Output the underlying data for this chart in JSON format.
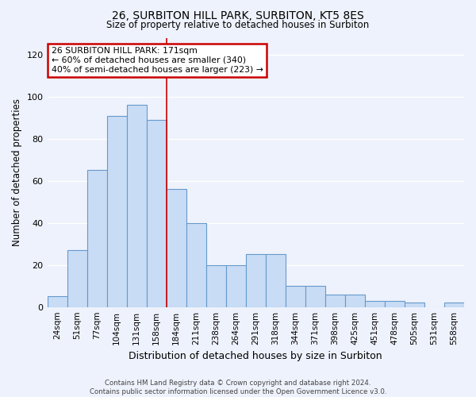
{
  "title1": "26, SURBITON HILL PARK, SURBITON, KT5 8ES",
  "title2": "Size of property relative to detached houses in Surbiton",
  "xlabel": "Distribution of detached houses by size in Surbiton",
  "ylabel": "Number of detached properties",
  "bar_values": [
    5,
    27,
    65,
    91,
    96,
    89,
    56,
    40,
    20,
    20,
    25,
    25,
    10,
    10,
    6,
    6,
    3,
    3,
    2,
    0,
    2
  ],
  "bin_labels": [
    "24sqm",
    "51sqm",
    "77sqm",
    "104sqm",
    "131sqm",
    "158sqm",
    "184sqm",
    "211sqm",
    "238sqm",
    "264sqm",
    "291sqm",
    "318sqm",
    "344sqm",
    "371sqm",
    "398sqm",
    "425sqm",
    "451sqm",
    "478sqm",
    "505sqm",
    "531sqm",
    "558sqm"
  ],
  "bar_color": "#c9dcf5",
  "bar_edge_color": "#6699cc",
  "property_line_x": 5.5,
  "annotation_title": "26 SURBITON HILL PARK: 171sqm",
  "annotation_line1": "← 60% of detached houses are smaller (340)",
  "annotation_line2": "40% of semi-detached houses are larger (223) →",
  "annotation_box_color": "#ffffff",
  "annotation_box_edge": "#cc0000",
  "vline_color": "#cc0000",
  "ylim": [
    0,
    128
  ],
  "yticks": [
    0,
    20,
    40,
    60,
    80,
    100,
    120
  ],
  "footer1": "Contains HM Land Registry data © Crown copyright and database right 2024.",
  "footer2": "Contains public sector information licensed under the Open Government Licence v3.0.",
  "bg_color": "#eef2fc",
  "grid_color": "#ffffff"
}
